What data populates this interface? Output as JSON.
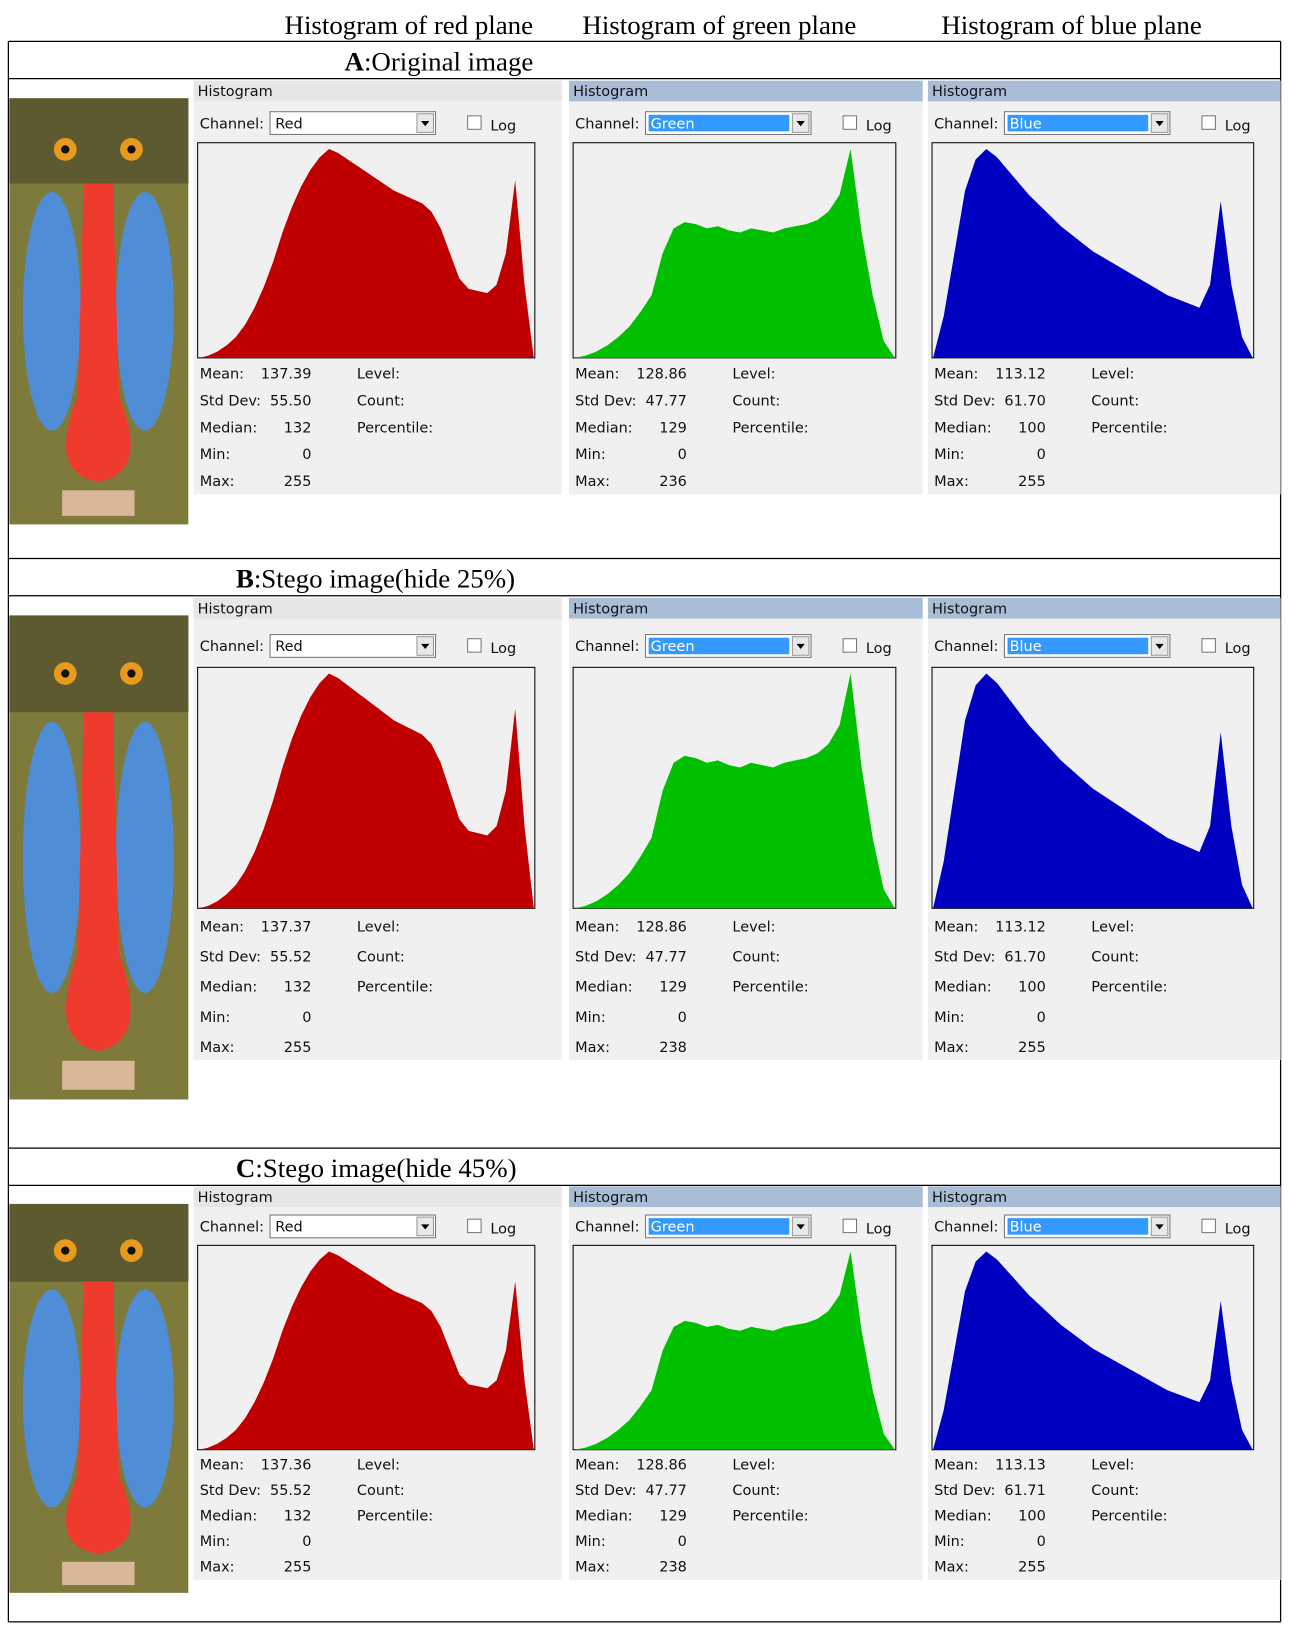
{
  "header": {
    "columns": [
      "Histogram of red plane",
      "Histogram of green plane",
      "Histogram of blue plane"
    ]
  },
  "sections": [
    {
      "letter": "A",
      "label": ":Original image",
      "panels": [
        {
          "title": "Histogram",
          "channel_label": "Channel:",
          "channel": "Red",
          "log": "Log",
          "stats": [
            [
              "Mean:",
              "137.39"
            ],
            [
              "Std Dev:",
              "55.50"
            ],
            [
              "Median:",
              "132"
            ],
            [
              "Min:",
              "0"
            ],
            [
              "Max:",
              "255"
            ]
          ],
          "info": [
            "Level:",
            "Count:",
            "Percentile:"
          ]
        },
        {
          "title": "Histogram",
          "channel_label": "Channel:",
          "channel": "Green",
          "log": "Log",
          "stats": [
            [
              "Mean:",
              "128.86"
            ],
            [
              "Std Dev:",
              "47.77"
            ],
            [
              "Median:",
              "129"
            ],
            [
              "Min:",
              "0"
            ],
            [
              "Max:",
              "236"
            ]
          ],
          "info": [
            "Level:",
            "Count:",
            "Percentile:"
          ]
        },
        {
          "title": "Histogram",
          "channel_label": "Channel:",
          "channel": "Blue",
          "log": "Log",
          "stats": [
            [
              "Mean:",
              "113.12"
            ],
            [
              "Std Dev:",
              "61.70"
            ],
            [
              "Median:",
              "100"
            ],
            [
              "Min:",
              "0"
            ],
            [
              "Max:",
              "255"
            ]
          ],
          "info": [
            "Level:",
            "Count:",
            "Percentile:"
          ]
        }
      ]
    },
    {
      "letter": "B",
      "label": ":Stego image(hide 25%)",
      "panels": [
        {
          "title": "Histogram",
          "channel_label": "Channel:",
          "channel": "Red",
          "log": "Log",
          "stats": [
            [
              "Mean:",
              "137.37"
            ],
            [
              "Std Dev:",
              "55.52"
            ],
            [
              "Median:",
              "132"
            ],
            [
              "Min:",
              "0"
            ],
            [
              "Max:",
              "255"
            ]
          ],
          "info": [
            "Level:",
            "Count:",
            "Percentile:"
          ]
        },
        {
          "title": "Histogram",
          "channel_label": "Channel:",
          "channel": "Green",
          "log": "Log",
          "stats": [
            [
              "Mean:",
              "128.86"
            ],
            [
              "Std Dev:",
              "47.77"
            ],
            [
              "Median:",
              "129"
            ],
            [
              "Min:",
              "0"
            ],
            [
              "Max:",
              "238"
            ]
          ],
          "info": [
            "Level:",
            "Count:",
            "Percentile:"
          ]
        },
        {
          "title": "Histogram",
          "channel_label": "Channel:",
          "channel": "Blue",
          "log": "Log",
          "stats": [
            [
              "Mean:",
              "113.12"
            ],
            [
              "Std Dev:",
              "61.70"
            ],
            [
              "Median:",
              "100"
            ],
            [
              "Min:",
              "0"
            ],
            [
              "Max:",
              "255"
            ]
          ],
          "info": [
            "Level:",
            "Count:",
            "Percentile:"
          ]
        }
      ]
    },
    {
      "letter": "C",
      "label": ":Stego image(hide 45%)",
      "panels": [
        {
          "title": "Histogram",
          "channel_label": "Channel:",
          "channel": "Red",
          "log": "Log",
          "stats": [
            [
              "Mean:",
              "137.36"
            ],
            [
              "Std Dev:",
              "55.52"
            ],
            [
              "Median:",
              "132"
            ],
            [
              "Min:",
              "0"
            ],
            [
              "Max:",
              "255"
            ]
          ],
          "info": [
            "Level:",
            "Count:",
            "Percentile:"
          ]
        },
        {
          "title": "Histogram",
          "channel_label": "Channel:",
          "channel": "Green",
          "log": "Log",
          "stats": [
            [
              "Mean:",
              "128.86"
            ],
            [
              "Std Dev:",
              "47.77"
            ],
            [
              "Median:",
              "129"
            ],
            [
              "Min:",
              "0"
            ],
            [
              "Max:",
              "238"
            ]
          ],
          "info": [
            "Level:",
            "Count:",
            "Percentile:"
          ]
        },
        {
          "title": "Histogram",
          "channel_label": "Channel:",
          "channel": "Blue",
          "log": "Log",
          "stats": [
            [
              "Mean:",
              "113.13"
            ],
            [
              "Std Dev:",
              "61.71"
            ],
            [
              "Median:",
              "100"
            ],
            [
              "Min:",
              "0"
            ],
            [
              "Max:",
              "255"
            ]
          ],
          "info": [
            "Level:",
            "Count:",
            "Percentile:"
          ]
        }
      ]
    }
  ]
}
